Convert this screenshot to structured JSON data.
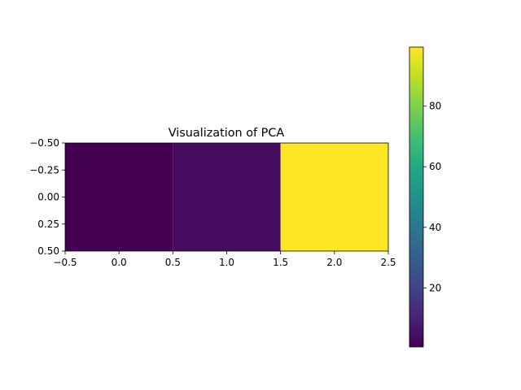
{
  "chart_data": {
    "type": "heatmap",
    "title": "Visualization of PCA",
    "xlabel": "",
    "ylabel": "",
    "xlim": [
      -0.5,
      2.5
    ],
    "ylim": [
      0.5,
      -0.5
    ],
    "xticks": [
      -0.5,
      0.0,
      0.5,
      1.0,
      1.5,
      2.0,
      2.5
    ],
    "xtick_labels": [
      "−0.5",
      "0.0",
      "0.5",
      "1.0",
      "1.5",
      "2.0",
      "2.5"
    ],
    "yticks": [
      -0.5,
      -0.25,
      0.0,
      0.25,
      0.5
    ],
    "ytick_labels": [
      "−0.50",
      "−0.25",
      "0.00",
      "0.25",
      "0.50"
    ],
    "cells": [
      {
        "x": 0,
        "y": 0,
        "value": 0.5
      },
      {
        "x": 1,
        "y": 0,
        "value": 3.5
      },
      {
        "x": 2,
        "y": 0,
        "value": 99.5
      }
    ],
    "colormap": "viridis",
    "colorbar": {
      "range": [
        0.5,
        99.5
      ],
      "ticks": [
        20,
        40,
        60,
        80
      ],
      "tick_labels": [
        "20",
        "40",
        "60",
        "80"
      ]
    },
    "grid": false,
    "legend": "none"
  }
}
